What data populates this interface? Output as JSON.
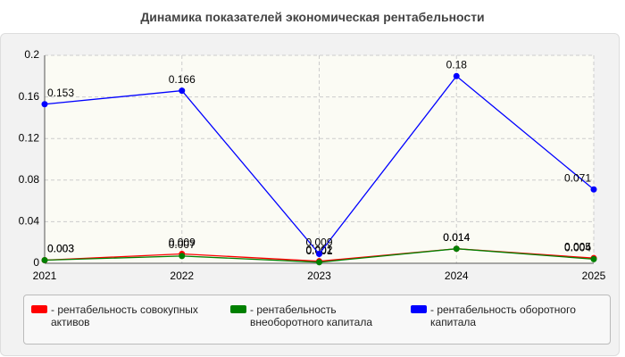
{
  "chart_data": {
    "type": "line",
    "title": "Динамика показателей экономическая рентабельности",
    "categories": [
      "2021",
      "2022",
      "2023",
      "2024",
      "2025"
    ],
    "series": [
      {
        "name": "- рентабельность совокупных активов",
        "color": "#ff0000",
        "values": [
          0.003,
          0.009,
          0.002,
          0.014,
          0.005
        ]
      },
      {
        "name": "- рентабельность внеоборотного капитала",
        "color": "#008000",
        "values": [
          0.003,
          0.007,
          0.001,
          0.014,
          0.004
        ]
      },
      {
        "name": "- рентабельность оборотного капитала",
        "color": "#0000ff",
        "values": [
          0.153,
          0.166,
          0.009,
          0.18,
          0.071
        ]
      }
    ],
    "ylim": [
      0,
      0.2
    ],
    "yticks": [
      0,
      0.04,
      0.08,
      0.12,
      0.16,
      0.2
    ],
    "grid": true
  }
}
